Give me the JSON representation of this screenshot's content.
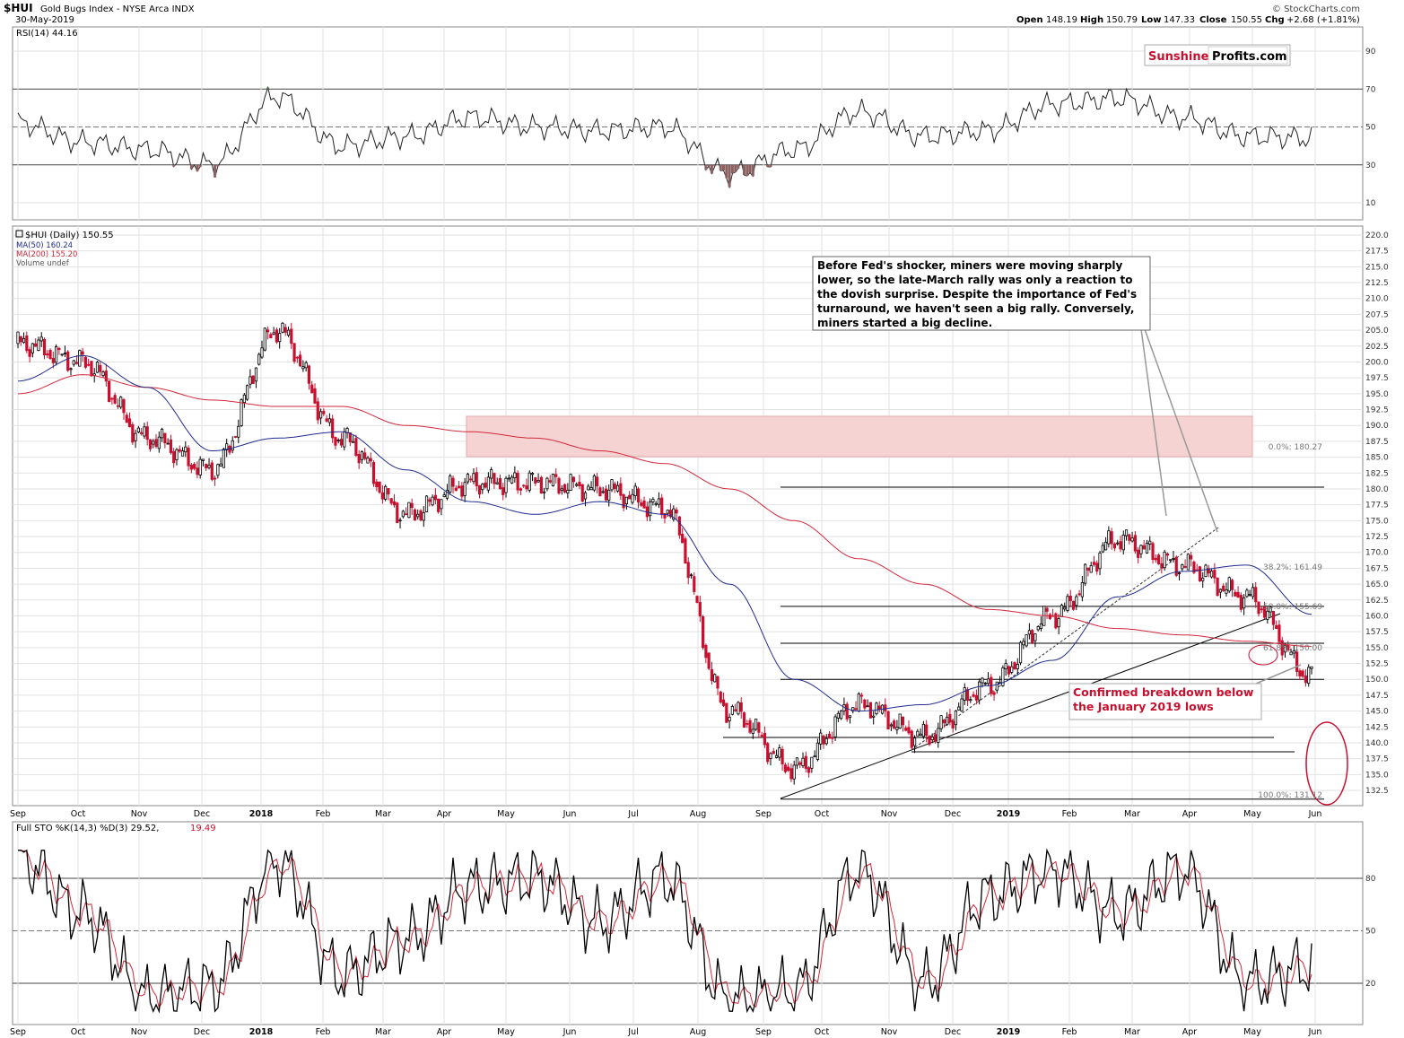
{
  "header": {
    "symbol": "$HUI",
    "name": "Gold Bugs Index - NYSE Arca INDX",
    "date": "30-May-2019",
    "copyright": "© StockCharts.com",
    "ohlc": {
      "open_label": "Open",
      "open": "148.19",
      "high_label": "High",
      "high": "150.79",
      "low_label": "Low",
      "low": "147.33",
      "close_label": "Close",
      "close": "150.55",
      "chg_label": "Chg",
      "chg": "+2.68 (+1.81%)"
    }
  },
  "brand": {
    "part1": "Sunshine",
    "part2": "Profits.com"
  },
  "colors": {
    "grid": "#e2e2e2",
    "up": "#000000",
    "down": "#c8102e",
    "ma50": "#1f2b8f",
    "ma200": "#d2283a",
    "resistance_zone": "#f6d3d3",
    "annotation_red": "#c8102e",
    "rsi_low_fill": "#8a6060",
    "rsi_high_fill": "#4e7d52"
  },
  "rsi_panel": {
    "label": "RSI(14) 44.16",
    "ticks": [
      "90",
      "70",
      "50",
      "30",
      "10"
    ]
  },
  "price_panel": {
    "legend": {
      "price": "$HUI (Daily) 150.55",
      "ma50": "MA(50) 160.24",
      "ma200": "MA(200) 155.20",
      "volume": "Volume undef"
    },
    "y_ticks": [
      "220.0",
      "217.5",
      "215.0",
      "212.5",
      "210.0",
      "207.5",
      "205.0",
      "202.5",
      "200.0",
      "197.5",
      "195.0",
      "192.5",
      "190.0",
      "187.5",
      "185.0",
      "182.5",
      "180.0",
      "177.5",
      "175.0",
      "172.5",
      "170.0",
      "167.5",
      "165.0",
      "162.5",
      "160.0",
      "157.5",
      "155.0",
      "152.5",
      "150.0",
      "147.5",
      "145.0",
      "142.5",
      "140.0",
      "137.5",
      "135.0",
      "132.5"
    ],
    "fib_labels": [
      "0.0%: 180.27",
      "38.2%: 161.49",
      "50.0%: 155.69",
      "61.8%: 150.00",
      "100.0%: 131.12"
    ],
    "annotation_box": "Before Fed's shocker, miners were moving sharply lower, so the late-March rally was only a reaction to the dovish surprise. Despite the importance of Fed's turnaround, we haven't seen a big rally. Conversely, miners started a big decline.",
    "annotation_breakdown": "Confirmed breakdown below the January 2019 lows"
  },
  "sto_panel": {
    "label_main": "Full STO %K(14,3) %D(3) 29.52,",
    "label_d": "19.49",
    "ticks": [
      "80",
      "50",
      "20"
    ]
  },
  "x_axis": {
    "months": [
      "Sep",
      "Oct",
      "Nov",
      "Dec",
      "2018",
      "Feb",
      "Mar",
      "Apr",
      "May",
      "Jun",
      "Jul",
      "Aug",
      "Sep",
      "Oct",
      "Nov",
      "Dec",
      "2019",
      "Feb",
      "Mar",
      "Apr",
      "May",
      "Jun"
    ]
  },
  "chart_data": {
    "type": "line",
    "title": "$HUI Gold Bugs Index - NYSE Arca INDX",
    "x": [
      "2017-09",
      "2017-10",
      "2017-11",
      "2017-12",
      "2018-01",
      "2018-02",
      "2018-03",
      "2018-04",
      "2018-05",
      "2018-06",
      "2018-07",
      "2018-08",
      "2018-09",
      "2018-10",
      "2018-11",
      "2018-12",
      "2019-01",
      "2019-02",
      "2019-03",
      "2019-04",
      "2019-05"
    ],
    "series": [
      {
        "name": "$HUI (Daily)",
        "values": [
          203,
          200,
          188,
          183,
          205,
          188,
          176,
          181,
          181,
          180,
          177,
          145,
          136,
          146,
          141,
          149,
          160,
          172,
          168,
          163,
          150.55
        ]
      },
      {
        "name": "MA(50)",
        "values": [
          197,
          201,
          196,
          186,
          188,
          189,
          183,
          178,
          176,
          178,
          176,
          165,
          150,
          145,
          146,
          149,
          153,
          163,
          167,
          168,
          160.24
        ]
      },
      {
        "name": "MA(200)",
        "values": [
          195,
          198,
          196,
          194,
          193,
          193,
          190,
          189,
          188,
          186,
          184,
          180,
          175,
          169,
          165,
          161,
          160,
          158,
          157,
          156,
          155.2
        ]
      },
      {
        "name": "RSI(14)",
        "values": [
          52,
          42,
          38,
          30,
          66,
          40,
          45,
          55,
          50,
          48,
          50,
          25,
          38,
          58,
          45,
          48,
          62,
          65,
          55,
          45,
          44.16
        ]
      },
      {
        "name": "Full STO %K(14,3)",
        "values": [
          92,
          60,
          12,
          18,
          90,
          25,
          45,
          75,
          80,
          55,
          80,
          10,
          15,
          85,
          20,
          70,
          85,
          60,
          85,
          20,
          29.52
        ]
      },
      {
        "name": "%D(3)",
        "values": [
          90,
          62,
          15,
          20,
          88,
          30,
          44,
          72,
          78,
          58,
          76,
          12,
          18,
          80,
          25,
          66,
          82,
          62,
          80,
          22,
          19.49
        ]
      }
    ],
    "ylim": [
      131,
      221
    ],
    "xlabel": "",
    "ylabel": "",
    "grid": true
  }
}
